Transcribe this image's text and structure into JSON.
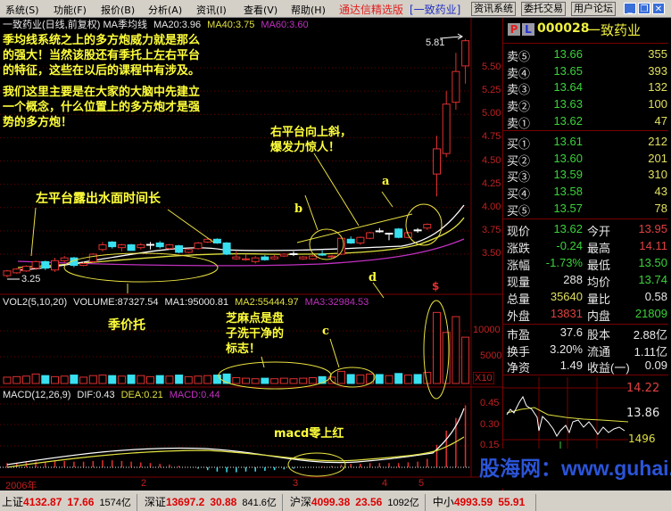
{
  "menu": {
    "items": [
      "系统(S)",
      "功能(F)",
      "报价(B)",
      "分析(A)",
      "资讯(I)",
      "查看(V)",
      "帮助(H)"
    ],
    "app_title": "通达信精选版",
    "stock_bracket": "[一致药业]",
    "buttons": [
      "资讯系统",
      "委托交易",
      "用户论坛"
    ]
  },
  "chart": {
    "header": {
      "name": "一致药业(日线,前复权) MA季均线",
      "ma20": "MA20:3.96",
      "ma40": "MA40:3.75",
      "ma60": "MA60:3.60"
    },
    "price_axis": [
      "5.50",
      "5.25",
      "5.00",
      "4.75",
      "4.50",
      "4.25",
      "4.00",
      "3.75",
      "3.50"
    ],
    "high_label": "5.81",
    "low_label": "3.25",
    "candles": [
      [
        3.27,
        3.33,
        3.25,
        3.32
      ],
      [
        3.3,
        3.35,
        3.29,
        3.34
      ],
      [
        3.32,
        3.38,
        3.31,
        3.37
      ],
      [
        3.35,
        3.43,
        3.33,
        3.42
      ],
      [
        3.42,
        3.43,
        3.33,
        3.35
      ],
      [
        3.33,
        3.46,
        3.31,
        3.43
      ],
      [
        3.43,
        3.48,
        3.41,
        3.46
      ],
      [
        3.46,
        3.47,
        3.36,
        3.38
      ],
      [
        3.38,
        3.42,
        3.37,
        3.4
      ],
      [
        3.42,
        3.51,
        3.41,
        3.5
      ],
      [
        3.55,
        3.63,
        3.53,
        3.6
      ],
      [
        3.63,
        3.64,
        3.56,
        3.58
      ],
      [
        3.57,
        3.61,
        3.53,
        3.6
      ],
      [
        3.6,
        3.61,
        3.54,
        3.54
      ],
      [
        3.57,
        3.62,
        3.55,
        3.6
      ],
      [
        3.6,
        3.63,
        3.55,
        3.605
      ],
      [
        3.62,
        3.64,
        3.56,
        3.58
      ],
      [
        3.56,
        3.61,
        3.55,
        3.6
      ],
      [
        3.59,
        3.6,
        3.51,
        3.52
      ],
      [
        3.52,
        3.56,
        3.51,
        3.55
      ],
      [
        3.56,
        3.63,
        3.55,
        3.62
      ],
      [
        3.63,
        3.68,
        3.62,
        3.66
      ],
      [
        3.66,
        3.67,
        3.61,
        3.62
      ],
      [
        3.62,
        3.63,
        3.49,
        3.5
      ],
      [
        3.45,
        3.53,
        3.44,
        3.47
      ],
      [
        3.44,
        3.5,
        3.43,
        3.45
      ],
      [
        3.42,
        3.48,
        3.4,
        3.46
      ],
      [
        3.47,
        3.49,
        3.43,
        3.44
      ],
      [
        3.45,
        3.49,
        3.44,
        3.47
      ],
      [
        3.48,
        3.51,
        3.47,
        3.5
      ],
      [
        3.5,
        3.53,
        3.48,
        3.505
      ],
      [
        3.45,
        3.48,
        3.44,
        3.47
      ],
      [
        3.45,
        3.49,
        3.44,
        3.48
      ],
      [
        3.5,
        3.54,
        3.48,
        3.49
      ],
      [
        3.47,
        3.49,
        3.45,
        3.48
      ],
      [
        3.5,
        3.68,
        3.49,
        3.67
      ],
      [
        3.66,
        3.69,
        3.61,
        3.62
      ],
      [
        3.62,
        3.69,
        3.6,
        3.68
      ],
      [
        3.67,
        3.74,
        3.66,
        3.73
      ],
      [
        3.75,
        3.78,
        3.73,
        3.745
      ],
      [
        3.72,
        3.73,
        3.65,
        3.725
      ],
      [
        3.77,
        3.78,
        3.67,
        3.68
      ],
      [
        3.68,
        3.74,
        3.67,
        3.73
      ],
      [
        3.76,
        3.78,
        3.73,
        3.755
      ],
      [
        3.78,
        3.83,
        3.76,
        3.82
      ],
      [
        4.36,
        4.77,
        4.12,
        4.63
      ],
      [
        4.58,
        5.25,
        4.54,
        5.11
      ],
      [
        5.13,
        5.66,
        5.05,
        5.46
      ],
      [
        5.52,
        5.81,
        5.33,
        5.79
      ]
    ],
    "vol_header": {
      "name": "VOL2(5,10,20)",
      "volume": "VOLUME:87327.54",
      "ma1": "MA1:95000.81",
      "ma2": "MA2:55444.97",
      "ma3": "MA3:32984.53"
    },
    "vol_axis": [
      "10000",
      "5000"
    ],
    "vol_unit": "X10",
    "volumes": [
      1200,
      1300,
      1400,
      1800,
      1500,
      1300,
      1400,
      1600,
      1200,
      1500,
      1600,
      1500,
      1400,
      1600,
      1500,
      1300,
      1500,
      1400,
      1600,
      1300,
      1400,
      1500,
      1600,
      1800,
      1100,
      1000,
      900,
      1000,
      900,
      1000,
      900,
      1000,
      1100,
      1300,
      1200,
      2300,
      1700,
      1600,
      1800,
      1700,
      1500,
      1900,
      1600,
      1700,
      2100,
      13500,
      9700,
      12700,
      8800
    ],
    "macd_header": {
      "name": "MACD(12,26,9)",
      "dif": "DIF:0.43",
      "dea": "DEA:0.21",
      "macd": "MACD:0.44"
    },
    "macd_axis": [
      "0.45",
      "0.30",
      "0.15"
    ],
    "macd_hist": [
      0.03,
      0.03,
      0.035,
      0.04,
      0.04,
      0.045,
      0.045,
      0.04,
      0.04,
      0.045,
      0.05,
      0.05,
      0.045,
      0.04,
      0.035,
      0.03,
      0.025,
      0.02,
      0.01,
      0,
      -0.01,
      -0.02,
      -0.03,
      -0.035,
      -0.035,
      -0.03,
      -0.03,
      -0.025,
      -0.02,
      -0.015,
      -0.01,
      -0.005,
      0,
      0.005,
      0.01,
      0.02,
      0.025,
      0.025,
      0.03,
      0.03,
      0.03,
      0.03,
      0.035,
      0.04,
      0.06,
      0.16,
      0.26,
      0.35,
      0.44
    ],
    "date_axis": [
      "2006年",
      "2",
      "3",
      "4",
      "5"
    ],
    "markers": {
      "s": "$",
      "a": "a",
      "b": "b",
      "c": "c",
      "d": "d"
    },
    "annotations": {
      "intro1": [
        "季均线系统之上的多方炮威力就是那么",
        "的强大！当然该股还有季托上左右平台",
        "的特征，这些在以后的课程中有涉及。"
      ],
      "intro2": [
        "我们这里主要是在大家的大脑中先建立",
        "一个概念，什么位置上的多方炮才是强",
        "势的多方炮！"
      ],
      "left_platform": "左平台露出水面时间长",
      "right_platform": [
        "右平台向上斜，",
        "爆发力惊人！"
      ],
      "season_support": "季价托",
      "sesame": [
        "芝麻点是盘",
        "子洗干净的",
        "标志！"
      ],
      "macd_note": "macd零上红"
    }
  },
  "quote": {
    "code": "000028",
    "name": "一致药业",
    "p_btn": "P",
    "l_btn": "L",
    "asks": [
      {
        "label": "卖⑤",
        "price": "13.66",
        "vol": "355"
      },
      {
        "label": "卖④",
        "price": "13.65",
        "vol": "393"
      },
      {
        "label": "卖③",
        "price": "13.64",
        "vol": "132"
      },
      {
        "label": "卖②",
        "price": "13.63",
        "vol": "100"
      },
      {
        "label": "卖①",
        "price": "13.62",
        "vol": "47"
      }
    ],
    "bids": [
      {
        "label": "买①",
        "price": "13.61",
        "vol": "212"
      },
      {
        "label": "买②",
        "price": "13.60",
        "vol": "201"
      },
      {
        "label": "买③",
        "price": "13.59",
        "vol": "310"
      },
      {
        "label": "买④",
        "price": "13.58",
        "vol": "43"
      },
      {
        "label": "买⑤",
        "price": "13.57",
        "vol": "78"
      }
    ],
    "stats": [
      {
        "l1": "现价",
        "v1": "13.62",
        "c1": "#3cd23c",
        "l2": "今开",
        "v2": "13.95",
        "c2": "#e04040"
      },
      {
        "l1": "涨跌",
        "v1": "-0.24",
        "c1": "#3cd23c",
        "l2": "最高",
        "v2": "14.11",
        "c2": "#e04040"
      },
      {
        "l1": "涨幅",
        "v1": "-1.73%",
        "c1": "#3cd23c",
        "l2": "最低",
        "v2": "13.50",
        "c2": "#3cd23c"
      },
      {
        "l1": "现量",
        "v1": "288",
        "c1": "#e8e8e8",
        "l2": "均价",
        "v2": "13.74",
        "c2": "#3cd23c"
      },
      {
        "l1": "总量",
        "v1": "35640",
        "c1": "#e0e060",
        "l2": "量比",
        "v2": "0.58",
        "c2": "#e8e8e8"
      },
      {
        "l1": "外盘",
        "v1": "13831",
        "c1": "#e04040",
        "l2": "内盘",
        "v2": "21809",
        "c2": "#3cd23c"
      }
    ],
    "fund": [
      {
        "l1": "市盈",
        "v1": "37.6",
        "l2": "股本",
        "v2": "2.88亿"
      },
      {
        "l1": "换手",
        "v1": "3.20%",
        "l2": "流通",
        "v2": "1.11亿"
      },
      {
        "l1": "净资",
        "v1": "1.49",
        "l2": "收益(一)",
        "v2": "0.09"
      }
    ],
    "mini": {
      "high": "14.22",
      "mid": "13.86",
      "vol": "1496"
    }
  },
  "watermark": "股海网：www.guhai.com.cn",
  "status": [
    {
      "k": "上证",
      "v": "4132.87",
      "c": "17.66",
      "a": "1574亿"
    },
    {
      "k": "深证",
      "v": "13697.2",
      "c": "30.88",
      "a": "841.6亿"
    },
    {
      "k": "沪深",
      "v": "4099.38",
      "c": "23.56",
      "a": "1092亿"
    },
    {
      "k": "中小",
      "v": "4993.59",
      "c": "55.91",
      "a": ""
    }
  ],
  "colors": {
    "up": "#e03030",
    "down": "#38e0f0",
    "annotation": "#ffff3a",
    "ma20": "#ffffff",
    "ma40": "#e0e040",
    "ma60": "#c030c0"
  }
}
